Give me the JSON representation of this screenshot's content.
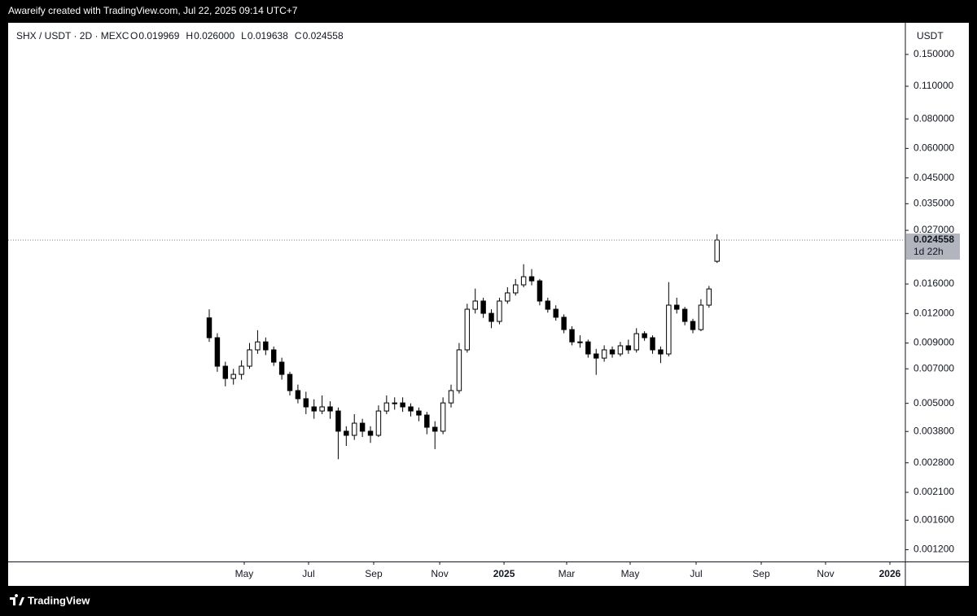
{
  "watermark": "Awareify created with TradingView.com, Jul 22, 2025 09:14 UTC+7",
  "footer": "TradingView",
  "chart_data": {
    "type": "candlestick",
    "title": "SHX / USDT · 2D · MEXC",
    "ohlc_legend": [
      {
        "key": "O",
        "label": "0.019969"
      },
      {
        "key": "H",
        "label": "0.026000"
      },
      {
        "key": "L",
        "label": "0.019638"
      },
      {
        "key": "C",
        "label": "0.024558"
      }
    ],
    "y_axis_unit": "USDT",
    "countdown": "1d 22h",
    "log_scale": true,
    "grid": false,
    "up_color": "#ffffff",
    "down_color": "#000000",
    "wick_color": "#000000",
    "open": [
      0.0115,
      0.00948,
      0.00718,
      0.00637,
      0.00663,
      0.00718,
      0.00842,
      0.0091,
      0.00842,
      0.00747,
      0.00663,
      0.00566,
      0.00523,
      0.00483,
      0.00464,
      0.00483,
      0.00464,
      0.00381,
      0.00366,
      0.00412,
      0.00381,
      0.00366,
      0.00464,
      0.00502,
      0.00502,
      0.00483,
      0.00464,
      0.00446,
      0.00396,
      0.00381,
      0.00502,
      0.00566,
      0.00842,
      0.01251,
      0.01355,
      0.01202,
      0.01111,
      0.01355,
      0.01467,
      0.01587,
      0.01718,
      0.0165,
      0.01355,
      0.01251,
      0.01157,
      0.01026,
      0.0091,
      0.0091,
      0.00809,
      0.00777,
      0.00842,
      0.00809,
      0.00876,
      0.00842,
      0.00986,
      0.00948,
      0.00842,
      0.00809,
      0.01302,
      0.01251,
      0.01111,
      0.01026,
      0.01302,
      0.019969
    ],
    "high": [
      0.0125,
      0.0099,
      0.0075,
      0.007,
      0.0076,
      0.009,
      0.0102,
      0.0095,
      0.0087,
      0.0078,
      0.0068,
      0.006,
      0.0056,
      0.0052,
      0.0054,
      0.0051,
      0.0048,
      0.004,
      0.0045,
      0.0043,
      0.004,
      0.0049,
      0.0054,
      0.0053,
      0.0053,
      0.005,
      0.0048,
      0.0046,
      0.0042,
      0.0053,
      0.006,
      0.009,
      0.0132,
      0.0153,
      0.014,
      0.0125,
      0.014,
      0.0155,
      0.0168,
      0.0194,
      0.0185,
      0.0168,
      0.014,
      0.013,
      0.0119,
      0.0106,
      0.0097,
      0.0093,
      0.0085,
      0.0088,
      0.0087,
      0.0091,
      0.0093,
      0.0104,
      0.0101,
      0.0097,
      0.0087,
      0.0163,
      0.014,
      0.0128,
      0.0114,
      0.0138,
      0.0157,
      0.026
    ],
    "low": [
      0.0091,
      0.0068,
      0.0059,
      0.006,
      0.0063,
      0.007,
      0.0081,
      0.008,
      0.0072,
      0.0063,
      0.0054,
      0.005,
      0.0045,
      0.0043,
      0.0045,
      0.0043,
      0.0029,
      0.0033,
      0.0035,
      0.0036,
      0.0034,
      0.0036,
      0.0045,
      0.0047,
      0.0046,
      0.0044,
      0.0042,
      0.0037,
      0.0032,
      0.0037,
      0.0048,
      0.0055,
      0.0082,
      0.012,
      0.0115,
      0.0104,
      0.0108,
      0.0132,
      0.0143,
      0.0155,
      0.0158,
      0.013,
      0.0121,
      0.0112,
      0.0099,
      0.0088,
      0.0086,
      0.0078,
      0.0066,
      0.0075,
      0.0078,
      0.0079,
      0.0081,
      0.0082,
      0.0092,
      0.0081,
      0.0074,
      0.0079,
      0.012,
      0.0107,
      0.0099,
      0.0101,
      0.0127,
      0.019638
    ],
    "close": [
      0.00948,
      0.00718,
      0.00637,
      0.00663,
      0.00718,
      0.00842,
      0.0091,
      0.00842,
      0.00747,
      0.00663,
      0.00566,
      0.00523,
      0.00483,
      0.00464,
      0.00483,
      0.00464,
      0.00381,
      0.00366,
      0.00412,
      0.00381,
      0.00366,
      0.00464,
      0.00502,
      0.00502,
      0.00483,
      0.00464,
      0.00446,
      0.00396,
      0.00381,
      0.00502,
      0.00566,
      0.00842,
      0.01251,
      0.01355,
      0.01202,
      0.01111,
      0.01355,
      0.01467,
      0.01587,
      0.01718,
      0.0165,
      0.01355,
      0.01251,
      0.01157,
      0.01026,
      0.0091,
      0.0091,
      0.00809,
      0.00777,
      0.00842,
      0.00809,
      0.00876,
      0.00842,
      0.00986,
      0.00948,
      0.00842,
      0.00809,
      0.01302,
      0.01251,
      0.01111,
      0.01026,
      0.01302,
      0.01525,
      0.024558
    ],
    "xlim": [
      -24.95,
      86.36
    ],
    "xticks": [
      {
        "value": 4.34,
        "label": "May"
      },
      {
        "value": 12.32,
        "label": "Jul"
      },
      {
        "value": 20.4,
        "label": "Sep"
      },
      {
        "value": 28.59,
        "label": "Nov"
      },
      {
        "value": 36.57,
        "label": "2025"
      },
      {
        "value": 44.34,
        "label": "Mar"
      },
      {
        "value": 52.22,
        "label": "May"
      },
      {
        "value": 60.4,
        "label": "Jul"
      },
      {
        "value": 68.48,
        "label": "Sep"
      },
      {
        "value": 76.46,
        "label": "Nov"
      },
      {
        "value": 84.44,
        "label": "2026"
      }
    ],
    "ylim": [
      0.00107,
      0.201
    ],
    "yticks": [
      {
        "value": 0.15,
        "label": "0.150000"
      },
      {
        "value": 0.11,
        "label": "0.110000"
      },
      {
        "value": 0.08,
        "label": "0.080000"
      },
      {
        "value": 0.06,
        "label": "0.060000"
      },
      {
        "value": 0.045,
        "label": "0.045000"
      },
      {
        "value": 0.035,
        "label": "0.035000"
      },
      {
        "value": 0.027,
        "label": "0.027000"
      },
      {
        "value": 0.016,
        "label": "0.016000"
      },
      {
        "value": 0.012,
        "label": "0.012000"
      },
      {
        "value": 0.009,
        "label": "0.009000"
      },
      {
        "value": 0.007,
        "label": "0.007000"
      },
      {
        "value": 0.005,
        "label": "0.005000"
      },
      {
        "value": 0.0038,
        "label": "0.003800"
      },
      {
        "value": 0.0028,
        "label": "0.002800"
      },
      {
        "value": 0.0021,
        "label": "0.002100"
      },
      {
        "value": 0.0016,
        "label": "0.001600"
      },
      {
        "value": 0.0012,
        "label": "0.001200"
      }
    ]
  }
}
